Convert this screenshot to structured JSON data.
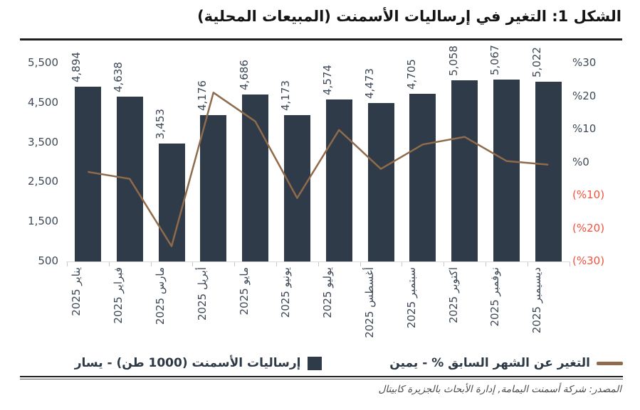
{
  "header": {
    "title": "الشكل 1: التغير في إرساليات الأسمنت (المبيعات المحلية)"
  },
  "source": {
    "text": "المصدر: شركة أسمنت اليمامة, إدارة الأبحاث بالجزيرة كابيتال"
  },
  "colors": {
    "bar": "#2f3b48",
    "line": "#8f6b4b",
    "negative_axis_text": "#f2513d",
    "axis_text": "#3d4956"
  },
  "chart_data": {
    "type": "bar+line-combo",
    "title": "الشكل 1: التغير في إرساليات الأسمنت (المبيعات المحلية)",
    "categories": [
      "يناير 2025",
      "فبراير 2025",
      "مارس 2025",
      "أبريل 2025",
      "مايو 2025",
      "يونيو 2025",
      "يوليو 2025",
      "أغسطس 2025",
      "سبتمبر 2025",
      "اكتوبر 2025",
      "نوفمبر 2025",
      "ديسيمبر 2025"
    ],
    "series": [
      {
        "name": "إرساليات الأسمنت (1000 طن) - يسار",
        "type": "bar",
        "axis": "left",
        "unit": "1000 طن",
        "color": "#2f3b48",
        "values": [
          4894,
          4638,
          3453,
          4176,
          4686,
          4173,
          4574,
          4473,
          4705,
          5058,
          5067,
          5022
        ],
        "labels": [
          "4,894",
          "4,638",
          "3,453",
          "4,176",
          "4,686",
          "4,173",
          "4,574",
          "4,473",
          "4,705",
          "5,058",
          "5,067",
          "5,022"
        ]
      },
      {
        "name": "التغير عن الشهر السابق % - يمين",
        "type": "line",
        "axis": "right",
        "unit": "%",
        "color": "#8f6b4b",
        "values": [
          -3.1,
          -5.2,
          -25.6,
          20.9,
          12.2,
          -11.0,
          9.6,
          -2.2,
          5.2,
          7.5,
          0.2,
          -0.9
        ]
      }
    ],
    "left_axis": {
      "min": 500,
      "max": 5500,
      "ticks": [
        {
          "v": 5500,
          "label": "5,500"
        },
        {
          "v": 4500,
          "label": "4,500"
        },
        {
          "v": 3500,
          "label": "3,500"
        },
        {
          "v": 2500,
          "label": "2,500"
        },
        {
          "v": 1500,
          "label": "1,500"
        },
        {
          "v": 500,
          "label": "500"
        }
      ]
    },
    "right_axis": {
      "min": -30,
      "max": 30,
      "ticks": [
        {
          "v": 30,
          "label": "%30"
        },
        {
          "v": 20,
          "label": "%20"
        },
        {
          "v": 10,
          "label": "%10"
        },
        {
          "v": 0,
          "label": "%0"
        },
        {
          "v": -10,
          "label": "(%10)"
        },
        {
          "v": -20,
          "label": "(%20)"
        },
        {
          "v": -30,
          "label": "(%30)"
        }
      ]
    },
    "legend_position": "bottom",
    "grid": false
  }
}
